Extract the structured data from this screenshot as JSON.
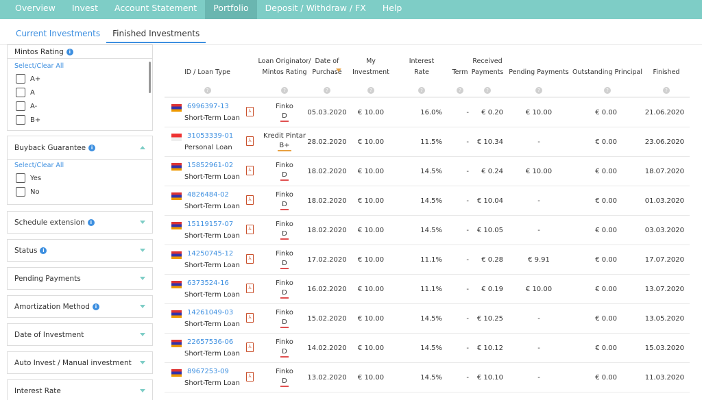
{
  "nav": [
    "Overview",
    "Invest",
    "Account Statement",
    "Portfolio",
    "Deposit / Withdraw / FX",
    "Help"
  ],
  "subtabs": [
    "Current Investments",
    "Finished Investments"
  ],
  "sidebar": {
    "rating": {
      "title": "Mintos Rating",
      "select_all": "Select/Clear All",
      "options": [
        "A+",
        "A",
        "A-",
        "B+"
      ]
    },
    "buyback": {
      "title": "Buyback Guarantee",
      "select_all": "Select/Clear All",
      "options": [
        "Yes",
        "No"
      ]
    },
    "panels": [
      {
        "title": "Schedule extension",
        "info": true
      },
      {
        "title": "Status",
        "info": true
      },
      {
        "title": "Pending Payments",
        "info": false
      },
      {
        "title": "Amortization Method",
        "info": true
      },
      {
        "title": "Date of Investment",
        "info": false
      },
      {
        "title": "Auto Invest / Manual investment",
        "info": false
      },
      {
        "title": "Interest Rate",
        "info": false
      }
    ]
  },
  "table": {
    "headers": [
      "ID / Loan Type",
      "Loan Originator/ Mintos Rating",
      "Date of Purchase",
      "My Investment",
      "Interest Rate",
      "Term",
      "Received Payments",
      "Pending Payments",
      "Outstanding Principal",
      "Finished"
    ],
    "rows": [
      {
        "id": "6996397-13",
        "type": "Short-Term Loan",
        "orig": "Finko",
        "rating": "D",
        "flag": "am",
        "date": "05.03.2020",
        "inv": "€ 10.00",
        "rate": "16.0%",
        "term": "-",
        "recv": "€ 0.20",
        "pend": "€ 10.00",
        "out": "€ 0.00",
        "fin": "21.06.2020"
      },
      {
        "id": "31053339-01",
        "type": "Personal Loan",
        "orig": "Kredit Pintar",
        "rating": "B+",
        "flag": "id",
        "date": "28.02.2020",
        "inv": "€ 10.00",
        "rate": "11.5%",
        "term": "-",
        "recv": "€ 10.34",
        "pend": "-",
        "out": "€ 0.00",
        "fin": "23.06.2020"
      },
      {
        "id": "15852961-02",
        "type": "Short-Term Loan",
        "orig": "Finko",
        "rating": "D",
        "flag": "am",
        "date": "18.02.2020",
        "inv": "€ 10.00",
        "rate": "14.5%",
        "term": "-",
        "recv": "€ 0.24",
        "pend": "€ 10.00",
        "out": "€ 0.00",
        "fin": "18.07.2020"
      },
      {
        "id": "4826484-02",
        "type": "Short-Term Loan",
        "orig": "Finko",
        "rating": "D",
        "flag": "am",
        "date": "18.02.2020",
        "inv": "€ 10.00",
        "rate": "14.5%",
        "term": "-",
        "recv": "€ 10.04",
        "pend": "-",
        "out": "€ 0.00",
        "fin": "01.03.2020"
      },
      {
        "id": "15119157-07",
        "type": "Short-Term Loan",
        "orig": "Finko",
        "rating": "D",
        "flag": "am",
        "date": "18.02.2020",
        "inv": "€ 10.00",
        "rate": "14.5%",
        "term": "-",
        "recv": "€ 10.05",
        "pend": "-",
        "out": "€ 0.00",
        "fin": "03.03.2020"
      },
      {
        "id": "14250745-12",
        "type": "Short-Term Loan",
        "orig": "Finko",
        "rating": "D",
        "flag": "am",
        "date": "17.02.2020",
        "inv": "€ 10.00",
        "rate": "11.1%",
        "term": "-",
        "recv": "€ 0.28",
        "pend": "€ 9.91",
        "out": "€ 0.00",
        "fin": "17.07.2020"
      },
      {
        "id": "6373524-16",
        "type": "Short-Term Loan",
        "orig": "Finko",
        "rating": "D",
        "flag": "am",
        "date": "16.02.2020",
        "inv": "€ 10.00",
        "rate": "11.1%",
        "term": "-",
        "recv": "€ 0.19",
        "pend": "€ 10.00",
        "out": "€ 0.00",
        "fin": "13.07.2020"
      },
      {
        "id": "14261049-03",
        "type": "Short-Term Loan",
        "orig": "Finko",
        "rating": "D",
        "flag": "am",
        "date": "15.02.2020",
        "inv": "€ 10.00",
        "rate": "14.5%",
        "term": "-",
        "recv": "€ 10.25",
        "pend": "-",
        "out": "€ 0.00",
        "fin": "13.05.2020"
      },
      {
        "id": "22657536-06",
        "type": "Short-Term Loan",
        "orig": "Finko",
        "rating": "D",
        "flag": "am",
        "date": "14.02.2020",
        "inv": "€ 10.00",
        "rate": "14.5%",
        "term": "-",
        "recv": "€ 10.12",
        "pend": "-",
        "out": "€ 0.00",
        "fin": "15.03.2020"
      },
      {
        "id": "8967253-09",
        "type": "Short-Term Loan",
        "orig": "Finko",
        "rating": "D",
        "flag": "am",
        "date": "13.02.2020",
        "inv": "€ 10.00",
        "rate": "14.5%",
        "term": "-",
        "recv": "€ 10.10",
        "pend": "-",
        "out": "€ 0.00",
        "fin": "11.03.2020"
      }
    ]
  }
}
